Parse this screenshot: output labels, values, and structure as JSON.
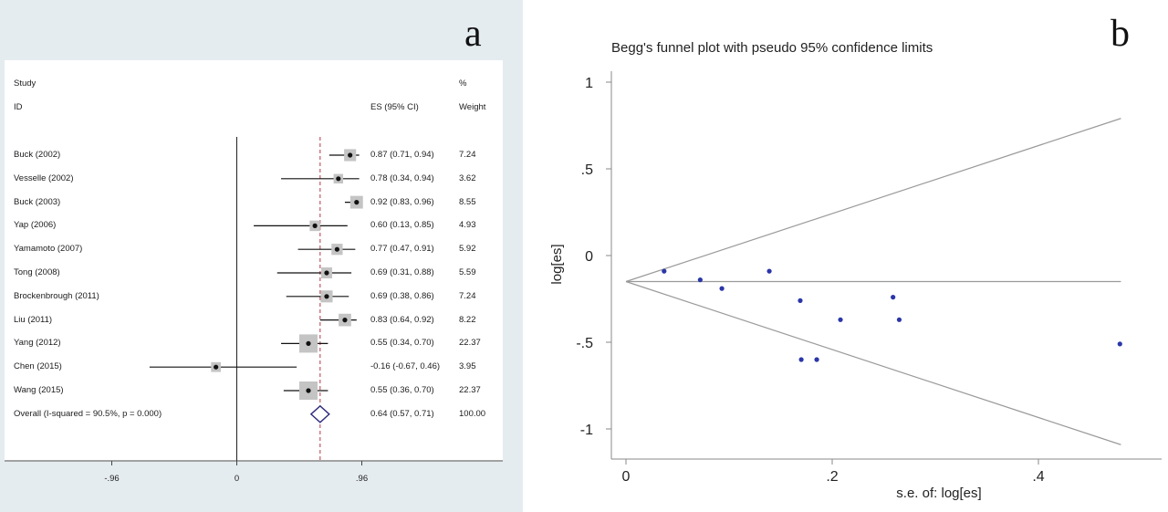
{
  "panels": {
    "a_label": "a",
    "b_label": "b"
  },
  "chart_data": [
    {
      "type": "forest",
      "header": {
        "study_line1": "Study",
        "study_line2": "ID",
        "es_label": "ES (95% CI)",
        "weight_line1": "%",
        "weight_line2": "Weight"
      },
      "studies": [
        {
          "label": "Buck (2002)",
          "es": 0.87,
          "lo": 0.71,
          "hi": 0.94,
          "ci_text": "0.87 (0.71, 0.94)",
          "weight": "7.24",
          "w": 7.24
        },
        {
          "label": "Vesselle (2002)",
          "es": 0.78,
          "lo": 0.34,
          "hi": 0.94,
          "ci_text": "0.78 (0.34, 0.94)",
          "weight": "3.62",
          "w": 3.62
        },
        {
          "label": "Buck (2003)",
          "es": 0.92,
          "lo": 0.83,
          "hi": 0.96,
          "ci_text": "0.92 (0.83, 0.96)",
          "weight": "8.55",
          "w": 8.55
        },
        {
          "label": "Yap (2006)",
          "es": 0.6,
          "lo": 0.13,
          "hi": 0.85,
          "ci_text": "0.60 (0.13, 0.85)",
          "weight": "4.93",
          "w": 4.93
        },
        {
          "label": "Yamamoto (2007)",
          "es": 0.77,
          "lo": 0.47,
          "hi": 0.91,
          "ci_text": "0.77 (0.47, 0.91)",
          "weight": "5.92",
          "w": 5.92
        },
        {
          "label": "Tong (2008)",
          "es": 0.69,
          "lo": 0.31,
          "hi": 0.88,
          "ci_text": "0.69 (0.31, 0.88)",
          "weight": "5.59",
          "w": 5.59
        },
        {
          "label": "Brockenbrough (2011)",
          "es": 0.69,
          "lo": 0.38,
          "hi": 0.86,
          "ci_text": "0.69 (0.38, 0.86)",
          "weight": "7.24",
          "w": 7.24
        },
        {
          "label": "Liu (2011)",
          "es": 0.83,
          "lo": 0.64,
          "hi": 0.92,
          "ci_text": "0.83 (0.64, 0.92)",
          "weight": "8.22",
          "w": 8.22
        },
        {
          "label": "Yang (2012)",
          "es": 0.55,
          "lo": 0.34,
          "hi": 0.7,
          "ci_text": "0.55 (0.34, 0.70)",
          "weight": "22.37",
          "w": 22.37
        },
        {
          "label": "Chen (2015)",
          "es": -0.16,
          "lo": -0.67,
          "hi": 0.46,
          "ci_text": "-0.16 (-0.67, 0.46)",
          "weight": "3.95",
          "w": 3.95
        },
        {
          "label": "Wang (2015)",
          "es": 0.55,
          "lo": 0.36,
          "hi": 0.7,
          "ci_text": "0.55 (0.36, 0.70)",
          "weight": "22.37",
          "w": 22.37
        }
      ],
      "overall": {
        "label": "Overall  (I-squared = 90.5%, p = 0.000)",
        "es": 0.64,
        "lo": 0.57,
        "hi": 0.71,
        "ci_text": "0.64 (0.57, 0.71)",
        "weight": "100.00"
      },
      "x_ticks": [
        {
          "value": -0.96,
          "label": "-.96"
        },
        {
          "value": 0,
          "label": "0"
        },
        {
          "value": 0.96,
          "label": ".96"
        }
      ],
      "xlim": [
        -1.9,
        2.0
      ],
      "null_line": 0
    },
    {
      "type": "scatter",
      "title": "Begg's funnel plot with pseudo 95% confidence limits",
      "xlabel": "s.e. of: log[es]",
      "ylabel": "log[es]",
      "xlim": [
        0,
        0.48
      ],
      "ylim": [
        -1.1,
        1.0
      ],
      "x_ticks": [
        {
          "value": 0,
          "label": "0"
        },
        {
          "value": 0.2,
          "label": ".2"
        },
        {
          "value": 0.4,
          "label": ".4"
        }
      ],
      "y_ticks": [
        {
          "value": 1,
          "label": "1"
        },
        {
          "value": 0.5,
          "label": ".5"
        },
        {
          "value": 0,
          "label": "0"
        },
        {
          "value": -0.5,
          "label": "-.5"
        },
        {
          "value": -1,
          "label": "-1"
        }
      ],
      "pooled_estimate": -0.15,
      "funnel_xmax": 0.48,
      "points": [
        {
          "x": 0.037,
          "y": -0.09
        },
        {
          "x": 0.072,
          "y": -0.14
        },
        {
          "x": 0.093,
          "y": -0.19
        },
        {
          "x": 0.139,
          "y": -0.09
        },
        {
          "x": 0.169,
          "y": -0.26
        },
        {
          "x": 0.17,
          "y": -0.6
        },
        {
          "x": 0.185,
          "y": -0.6
        },
        {
          "x": 0.208,
          "y": -0.37
        },
        {
          "x": 0.259,
          "y": -0.24
        },
        {
          "x": 0.265,
          "y": -0.37
        },
        {
          "x": 0.479,
          "y": -0.51
        }
      ],
      "colors": {
        "points": "#2b36a8",
        "lines": "#9a9a9a",
        "axis": "#8a8a8a"
      }
    }
  ]
}
